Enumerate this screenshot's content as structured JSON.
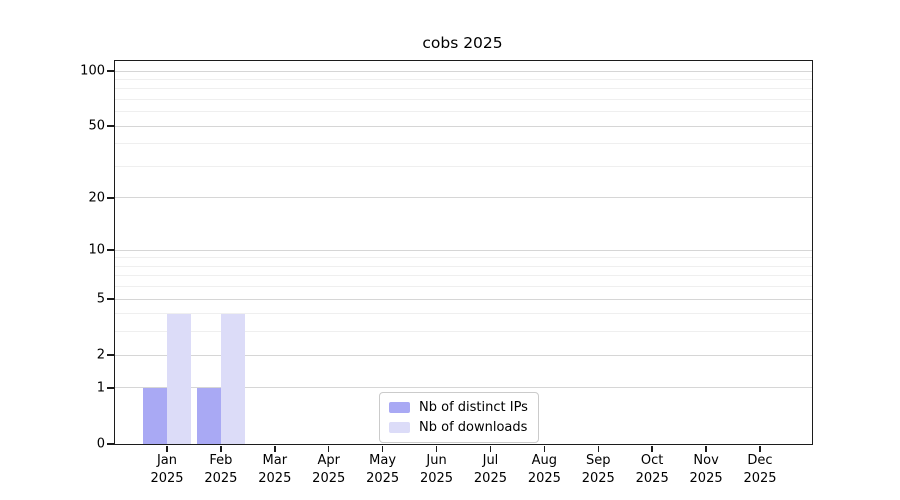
{
  "chart_data": {
    "type": "bar",
    "title": "cobs 2025",
    "categories": [
      "Jan",
      "Feb",
      "Mar",
      "Apr",
      "May",
      "Jun",
      "Jul",
      "Aug",
      "Sep",
      "Oct",
      "Nov",
      "Dec"
    ],
    "x_tick_line2": "2025",
    "series": [
      {
        "name": "Nb of distinct IPs",
        "color": "#a9a9f4",
        "values": [
          1,
          1,
          0,
          0,
          0,
          0,
          0,
          0,
          0,
          0,
          0,
          0
        ]
      },
      {
        "name": "Nb of downloads",
        "color": "#dcdcf8",
        "values": [
          4,
          4,
          0,
          0,
          0,
          0,
          0,
          0,
          0,
          0,
          0,
          0
        ]
      }
    ],
    "xlabel": "",
    "ylabel": "",
    "y_scale": "log1p",
    "y_ticks": [
      0,
      1,
      2,
      5,
      10,
      20,
      50,
      100
    ],
    "y_minor_gridlines": [
      3,
      4,
      6,
      7,
      8,
      9,
      30,
      40,
      60,
      70,
      80,
      90
    ],
    "ylim": [
      0,
      100
    ],
    "grid": "horizontal",
    "legend_position": "bottom-center",
    "colors": {
      "spine": "#1c1c1c",
      "major_grid": "#d6d6d6",
      "minor_grid": "#efefef",
      "text": "#000000",
      "legend_border": "#cbcbcb"
    }
  }
}
